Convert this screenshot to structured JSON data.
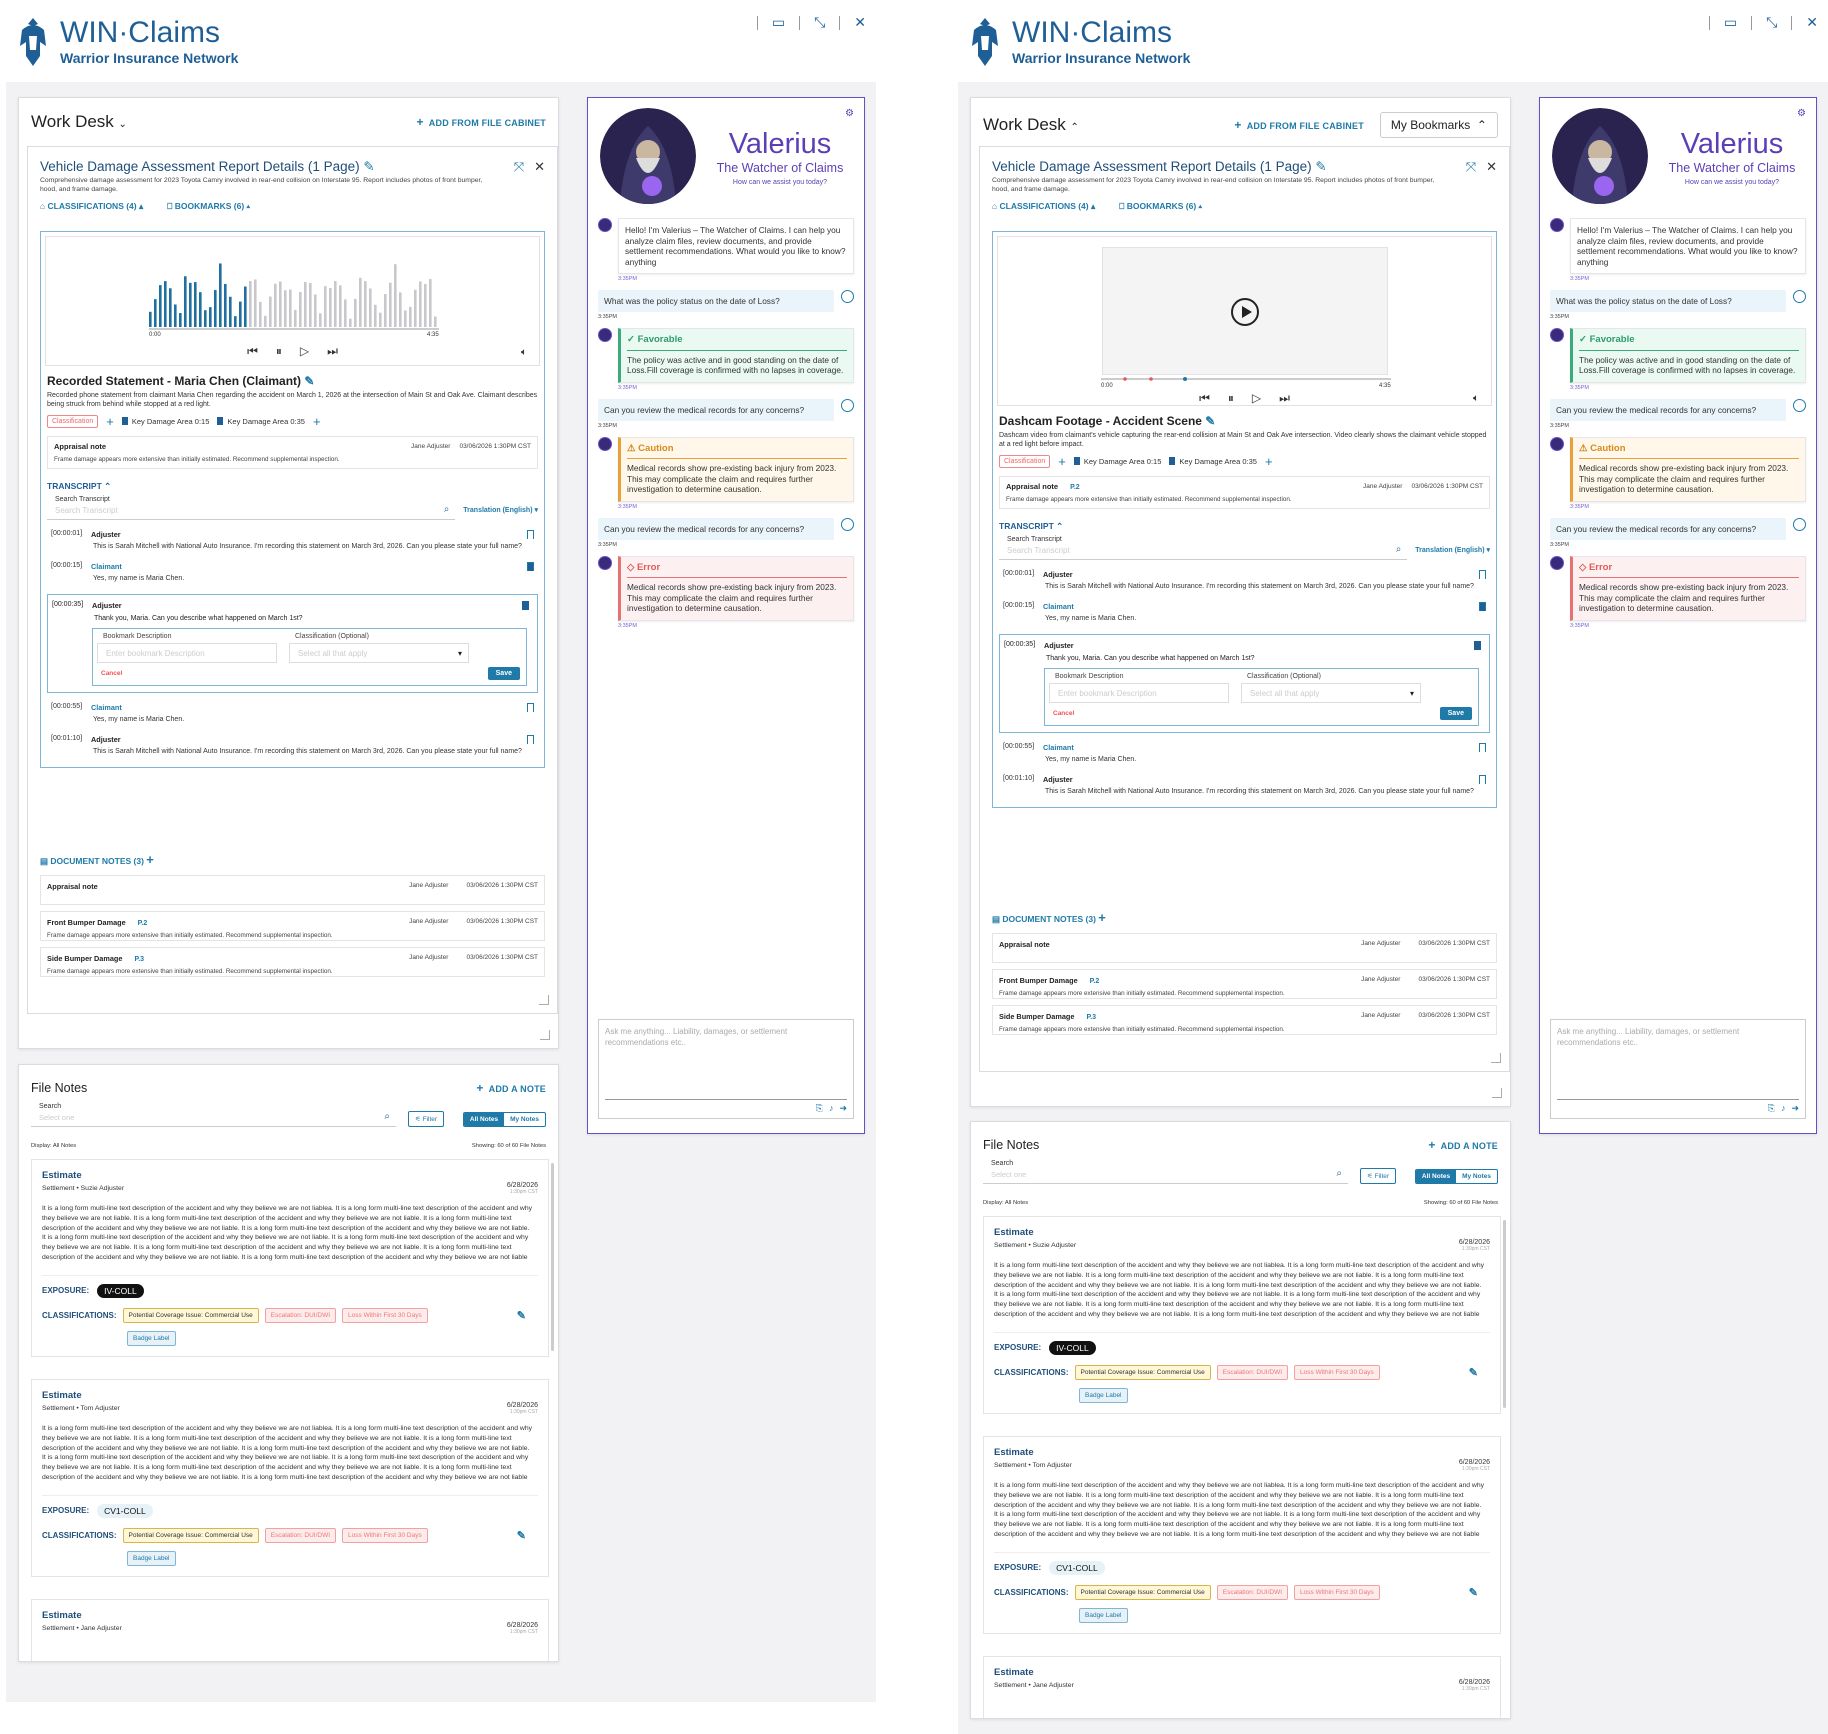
{
  "brand": {
    "name": "WIN·Claims",
    "tagline": "Warrior Insurance Network"
  },
  "work_desk": {
    "title": "Work Desk",
    "add_from_cabinet": "ADD FROM FILE CABINET",
    "bookmarks_dropdown": "My Bookmarks"
  },
  "document": {
    "title": "Vehicle Damage Assessment Report Details (1 Page)",
    "description": "Comprehensive damage assessment for 2023 Toyota Camry involved in rear-end collision on Interstate 95. Report includes photos of front bumper, hood, and frame damage.",
    "classifications": "CLASSIFICATIONS (4)",
    "bookmarks": "BOOKMARKS (6)"
  },
  "media_audio": {
    "title": "Recorded Statement - Maria Chen (Claimant)",
    "description": "Recorded phone statement from claimant Maria Chen regarding the accident on March 1, 2026 at the intersection of Main St and Oak Ave. Claimant describes being struck from behind while stopped at a red light.",
    "time_start": "0:00",
    "time_end": "4:35"
  },
  "media_video": {
    "title": "Dashcam Footage - Accident Scene",
    "description": "Dashcam video from claimant's vehicle capturing the rear-end collision at Main St and Oak Ave intersection. Video clearly shows the claimant vehicle stopped at a red light before impact.",
    "time_start": "0:00",
    "time_end": "4:35"
  },
  "media_tags": {
    "classification": "Classification",
    "key1": "Key Damage Area 0:15",
    "key2": "Key Damage Area 0:35"
  },
  "appraisal_note": {
    "title": "Appraisal note",
    "author": "Jane Adjuster",
    "date": "03/06/2026 1:30PM CST",
    "text": "Frame damage appears more extensive than initially estimated. Recommend supplemental inspection."
  },
  "transcript": {
    "heading": "TRANSCRIPT",
    "search_label": "Search Transcript",
    "search_placeholder": "Search Transcript",
    "translation": "Translation (English)",
    "lines": [
      {
        "ts": "[00:00:01]",
        "who": "Adjuster",
        "text": "This is Sarah Mitchell with National Auto Insurance. I'm recording this statement on March 3rd, 2026. Can you please state your full name?"
      },
      {
        "ts": "[00:00:15]",
        "who": "Claimant",
        "text": "Yes, my name is Maria Chen."
      },
      {
        "ts": "[00:00:35]",
        "who": "Adjuster",
        "text": "Thank you, Maria. Can you describe what happened on March 1st?"
      },
      {
        "ts": "[00:00:55]",
        "who": "Claimant",
        "text": "Yes, my name is Maria Chen."
      },
      {
        "ts": "[00:01:10]",
        "who": "Adjuster",
        "text": "This is Sarah Mitchell with National Auto Insurance. I'm recording this statement on March 3rd, 2026. Can you please state your full name?"
      }
    ],
    "form": {
      "desc_label": "Bookmark Description",
      "desc_placeholder": "Enter bookmark Description",
      "class_label": "Classification (Optional)",
      "class_placeholder": "Select all that apply",
      "cancel": "Cancel",
      "save": "Save"
    }
  },
  "doc_notes": {
    "heading": "DOCUMENT NOTES (3)",
    "items": [
      {
        "title": "Appraisal note",
        "page": "",
        "author": "Jane Adjuster",
        "date": "03/06/2026 1:30PM CST",
        "text": ""
      },
      {
        "title": "Front Bumper Damage",
        "page": "P.2",
        "author": "Jane Adjuster",
        "date": "03/06/2026 1:30PM CST",
        "text": "Frame damage appears more extensive than initially estimated. Recommend supplemental inspection."
      },
      {
        "title": "Side Bumper Damage",
        "page": "P.3",
        "author": "Jane Adjuster",
        "date": "03/06/2026 1:30PM CST",
        "text": "Frame damage appears more extensive than initially estimated. Recommend supplemental inspection."
      }
    ]
  },
  "file_notes": {
    "title": "File Notes",
    "add": "ADD A NOTE",
    "search_label": "Search",
    "search_placeholder": "Select one",
    "filter": "Filter",
    "all": "All Notes",
    "mine": "My Notes",
    "display": "Display: All Notes",
    "showing": "Showing: 60 of 60 File Notes",
    "exposure_label": "EXPOSURE:",
    "classifications_label": "CLASSIFICATIONS:",
    "tags": [
      "Potential Coverage Issue: Commercial Use",
      "Escalation: DUI/DWI",
      "Loss Within First 30 Days",
      "Badge Label"
    ],
    "body": "It is a long form multi-line text description of the accident and why they believe we are not liablea. It is a long form multi-line text description of the accident and why they believe we are not liable. It is a long form multi-line text description of the accident and why they believe we are not liable. It is a long form multi-line text description of the accident and why they believe we are not liable. It is a long form multi-line text description of the accident and why they believe we are not liable. It is a long form multi-line text description of the accident and why they believe we are not liable. It is a long form multi-line text description of the accident and why they believe we are not liable. It is a long form multi-line text description of the accident and why they believe we are not liable. It is a long form multi-line text description of the accident and why they believe we are not liable. It is a long form multi-line text description of the accident and why they believe we are not liable",
    "entries": [
      {
        "title": "Estimate",
        "sub": "Settlement  •  Suzie Adjuster",
        "date": "6/28/2026",
        "time": "1:30pm CST",
        "exposure": "IV-COLL"
      },
      {
        "title": "Estimate",
        "sub": "Settlement  •  Tom Adjuster",
        "date": "6/28/2026",
        "time": "1:30pm CST",
        "exposure": "CV1-COLL"
      },
      {
        "title": "Estimate",
        "sub": "Settlement  •  Jane Adjuster",
        "date": "6/28/2026",
        "time": "1:30pm CST",
        "exposure": ""
      }
    ]
  },
  "assistant": {
    "name": "Valerius",
    "subtitle": "The Watcher of Claims",
    "prompt": "How can we assist you today?",
    "greeting": "Hello! I'm Valerius – The Watcher of Claims. I can help you analyze claim files, review documents, and provide settlement recommendations. What would you like to know?anything",
    "time": "3:35PM",
    "q1": "What was the policy status on the date of Loss?",
    "q2": "Can you review the medical records for any concerns?",
    "q3": "Can you review the medical records for any concerns?",
    "fav_title": "Favorable",
    "fav_text": "The policy was active and in good standing on the date of Loss.Fill coverage is confirmed with no lapses in coverage.",
    "cau_title": "Caution",
    "cau_text": "Medical records show pre-existing back injury from 2023. This may complicate the claim and requires further investigation to determine causation.",
    "err_title": "Error",
    "err_text": "Medical records show pre-existing back injury from 2023. This may complicate the claim and requires further investigation to determine causation.",
    "ask_placeholder": "Ask me anything... Liability, damages, or settlement recommendations etc.."
  }
}
